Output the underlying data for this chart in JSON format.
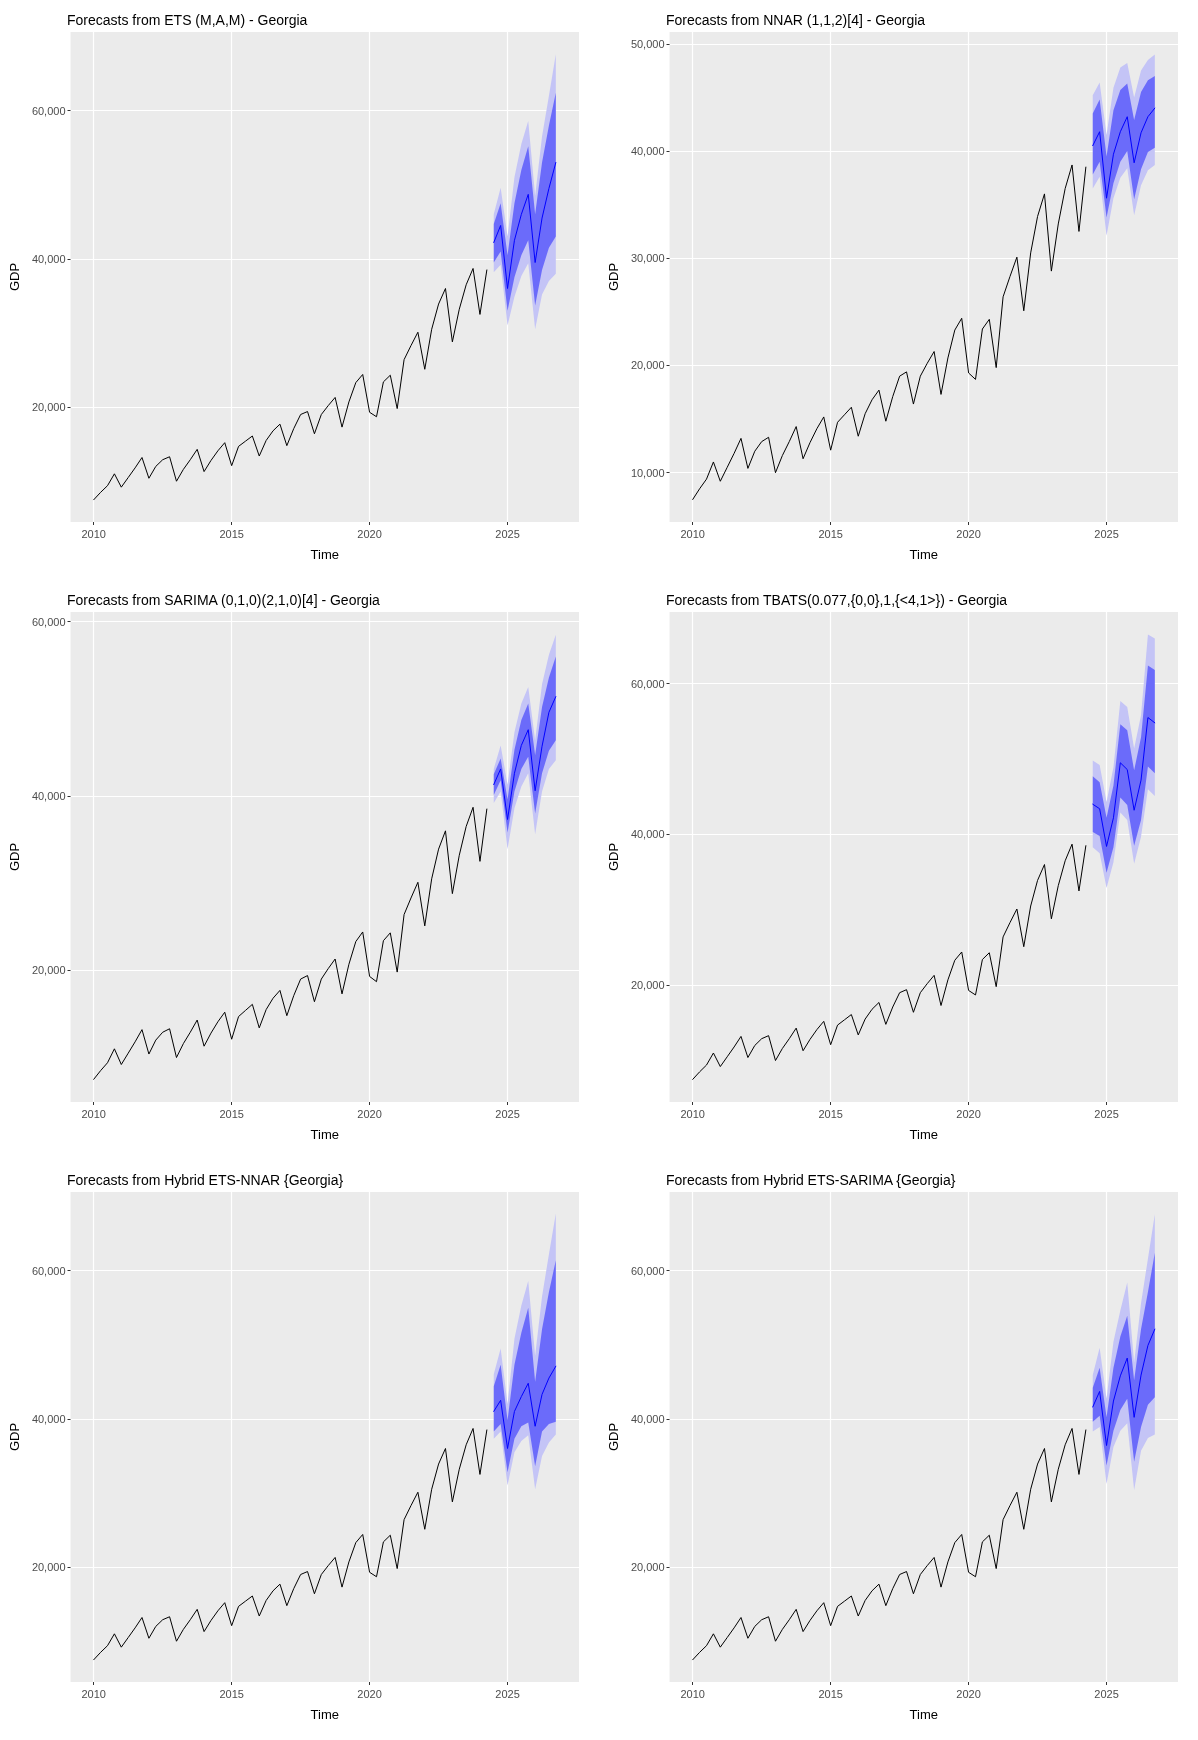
{
  "chart_data": [
    {
      "type": "line",
      "title": "Forecasts from ETS (M,A,M) - Georgia",
      "xlabel": "Time",
      "ylabel": "GDP",
      "xlim": [
        2009.16,
        2027.59
      ],
      "xticks": [
        2010,
        2015,
        2020,
        2025
      ],
      "ylim": [
        4500,
        70600
      ],
      "yticks": [
        {
          "value": 20000,
          "label": "20,000"
        },
        {
          "value": 40000,
          "label": "40,000"
        },
        {
          "value": 60000,
          "label": "60,000"
        }
      ],
      "grid": true,
      "marker": "none",
      "x": [
        2010,
        2010.25,
        2010.5,
        2010.75,
        2011,
        2011.25,
        2011.5,
        2011.75,
        2012,
        2012.25,
        2012.5,
        2012.75,
        2013,
        2013.25,
        2013.5,
        2013.75,
        2014,
        2014.25,
        2014.5,
        2014.75,
        2015,
        2015.25,
        2015.5,
        2015.75,
        2016,
        2016.25,
        2016.5,
        2016.75,
        2017,
        2017.25,
        2017.5,
        2017.75,
        2018,
        2018.25,
        2018.5,
        2018.75,
        2019,
        2019.25,
        2019.5,
        2019.75,
        2020,
        2020.25,
        2020.5,
        2020.75,
        2021,
        2021.25,
        2021.5,
        2021.75,
        2022,
        2022.25,
        2022.5,
        2022.75,
        2023,
        2023.25,
        2023.5,
        2023.75,
        2024,
        2024.25
      ],
      "series": [
        {
          "color": "#c4c4f6",
          "x": [
            2024.5,
            2024.75,
            2025,
            2025.25,
            2025.5,
            2025.75,
            2026,
            2026.25,
            2026.5,
            2026.75
          ],
          "values": [
            null,
            null,
            null,
            null,
            null,
            null,
            null,
            null,
            null,
            null
          ],
          "lower": [
            38200,
            39200,
            31000,
            34900,
            37700,
            39400,
            30500,
            35200,
            37000,
            38000
          ],
          "upper": [
            46000,
            49600,
            43000,
            51000,
            55500,
            58600,
            48500,
            56500,
            62000,
            67600
          ]
        },
        {
          "color": "#0000ff",
          "x": [
            2024.5,
            2024.75,
            2025,
            2025.25,
            2025.5,
            2025.75,
            2026,
            2026.25,
            2026.5,
            2026.75
          ],
          "values": [
            42200,
            44500,
            36000,
            42500,
            46000,
            48700,
            39500,
            45500,
            49500,
            53000
          ],
          "lower": [
            39500,
            41000,
            33000,
            37500,
            40500,
            42500,
            33700,
            38500,
            41500,
            43000
          ],
          "upper": [
            44700,
            47500,
            40500,
            47500,
            52000,
            55200,
            46000,
            53000,
            58000,
            62400
          ]
        },
        {
          "color": "#000000",
          "values": [
            7500,
            8500,
            9400,
            11000,
            9200,
            10500,
            11800,
            13200,
            10400,
            12000,
            12900,
            13300,
            10000,
            11600,
            12900,
            14300,
            11300,
            12800,
            14100,
            15200,
            12100,
            14700,
            15400,
            16100,
            13400,
            15500,
            16800,
            17700,
            14800,
            17100,
            19000,
            19400,
            16400,
            19000,
            20200,
            21300,
            17300,
            20700,
            23300,
            24400,
            19300,
            18700,
            23400,
            24300,
            19800,
            26400,
            28300,
            30100,
            25100,
            30500,
            33900,
            36000,
            28800,
            33200,
            36500,
            38700,
            32500,
            38500
          ]
        }
      ]
    },
    {
      "type": "line",
      "title": "Forecasts from NNAR (1,1,2)[4] - Georgia",
      "xlabel": "Time",
      "ylabel": "GDP",
      "xlim": [
        2009.16,
        2027.59
      ],
      "xticks": [
        2010,
        2015,
        2020,
        2025
      ],
      "ylim": [
        5400,
        51100
      ],
      "yticks": [
        {
          "value": 10000,
          "label": "10,000"
        },
        {
          "value": 20000,
          "label": "20,000"
        },
        {
          "value": 30000,
          "label": "30,000"
        },
        {
          "value": 40000,
          "label": "40,000"
        },
        {
          "value": 50000,
          "label": "50,000"
        }
      ],
      "grid": true,
      "marker": "none",
      "x": [
        2010,
        2010.25,
        2010.5,
        2010.75,
        2011,
        2011.25,
        2011.5,
        2011.75,
        2012,
        2012.25,
        2012.5,
        2012.75,
        2013,
        2013.25,
        2013.5,
        2013.75,
        2014,
        2014.25,
        2014.5,
        2014.75,
        2015,
        2015.25,
        2015.5,
        2015.75,
        2016,
        2016.25,
        2016.5,
        2016.75,
        2017,
        2017.25,
        2017.5,
        2017.75,
        2018,
        2018.25,
        2018.5,
        2018.75,
        2019,
        2019.25,
        2019.5,
        2019.75,
        2020,
        2020.25,
        2020.5,
        2020.75,
        2021,
        2021.25,
        2021.5,
        2021.75,
        2022,
        2022.25,
        2022.5,
        2022.75,
        2023,
        2023.25,
        2023.5,
        2023.75,
        2024,
        2024.25
      ],
      "series": [
        {
          "color": "#c4c4f6",
          "x": [
            2024.5,
            2024.75,
            2025,
            2025.25,
            2025.5,
            2025.75,
            2026,
            2026.25,
            2026.5,
            2026.75
          ],
          "values": [
            null,
            null,
            null,
            null,
            null,
            null,
            null,
            null,
            null,
            null
          ],
          "lower": [
            36500,
            37600,
            32100,
            35600,
            37500,
            38400,
            34000,
            36800,
            38200,
            38700
          ],
          "upper": [
            45200,
            46400,
            41500,
            45900,
            47800,
            48200,
            45000,
            47500,
            48500,
            49000
          ]
        },
        {
          "color": "#0000ff",
          "x": [
            2024.5,
            2024.75,
            2025,
            2025.25,
            2025.5,
            2025.75,
            2026,
            2026.25,
            2026.5,
            2026.75
          ],
          "values": [
            40500,
            41800,
            35600,
            39700,
            41800,
            43200,
            38900,
            41700,
            43200,
            44000
          ],
          "lower": [
            37800,
            39000,
            33800,
            37000,
            39000,
            40000,
            35500,
            38300,
            39900,
            40300
          ],
          "upper": [
            43500,
            44800,
            39500,
            43800,
            45700,
            46300,
            42900,
            45500,
            46600,
            47000
          ]
        },
        {
          "color": "#000000",
          "values": [
            7500,
            8500,
            9400,
            11000,
            9200,
            10500,
            11800,
            13200,
            10400,
            12000,
            12900,
            13300,
            10000,
            11600,
            12900,
            14300,
            11300,
            12800,
            14100,
            15200,
            12100,
            14700,
            15400,
            16100,
            13400,
            15500,
            16800,
            17700,
            14800,
            17100,
            19000,
            19400,
            16400,
            19000,
            20200,
            21300,
            17300,
            20700,
            23300,
            24400,
            19300,
            18700,
            23400,
            24300,
            19800,
            26400,
            28300,
            30100,
            25100,
            30500,
            33900,
            36000,
            28800,
            33200,
            36500,
            38700,
            32500,
            38500
          ]
        }
      ]
    },
    {
      "type": "line",
      "title": "Forecasts from SARIMA (0,1,0)(2,1,0)[4] - Georgia",
      "xlabel": "Time",
      "ylabel": "GDP",
      "xlim": [
        2009.16,
        2027.59
      ],
      "xticks": [
        2010,
        2015,
        2020,
        2025
      ],
      "ylim": [
        4900,
        61100
      ],
      "yticks": [
        {
          "value": 20000,
          "label": "20,000"
        },
        {
          "value": 40000,
          "label": "40,000"
        },
        {
          "value": 60000,
          "label": "60,000"
        }
      ],
      "grid": true,
      "marker": "none",
      "x": [
        2010,
        2010.25,
        2010.5,
        2010.75,
        2011,
        2011.25,
        2011.5,
        2011.75,
        2012,
        2012.25,
        2012.5,
        2012.75,
        2013,
        2013.25,
        2013.5,
        2013.75,
        2014,
        2014.25,
        2014.5,
        2014.75,
        2015,
        2015.25,
        2015.5,
        2015.75,
        2016,
        2016.25,
        2016.5,
        2016.75,
        2017,
        2017.25,
        2017.5,
        2017.75,
        2018,
        2018.25,
        2018.5,
        2018.75,
        2019,
        2019.25,
        2019.5,
        2019.75,
        2020,
        2020.25,
        2020.5,
        2020.75,
        2021,
        2021.25,
        2021.5,
        2021.75,
        2022,
        2022.25,
        2022.5,
        2022.75,
        2023,
        2023.25,
        2023.5,
        2023.75,
        2024,
        2024.25
      ],
      "series": [
        {
          "color": "#c4c4f6",
          "x": [
            2024.5,
            2024.75,
            2025,
            2025.25,
            2025.5,
            2025.75,
            2026,
            2026.25,
            2026.5,
            2026.75
          ],
          "values": [
            null,
            null,
            null,
            null,
            null,
            null,
            null,
            null,
            null,
            null
          ],
          "lower": [
            39200,
            40500,
            33900,
            38600,
            41100,
            42600,
            35600,
            40500,
            43100,
            44100
          ],
          "upper": [
            43100,
            45800,
            41300,
            47300,
            50600,
            52500,
            46400,
            52800,
            56200,
            58500
          ]
        },
        {
          "color": "#0000ff",
          "x": [
            2024.5,
            2024.75,
            2025,
            2025.25,
            2025.5,
            2025.75,
            2026,
            2026.25,
            2026.5,
            2026.75
          ],
          "values": [
            41300,
            43100,
            37300,
            42600,
            45800,
            47600,
            40600,
            45700,
            49600,
            51400
          ],
          "lower": [
            40100,
            41800,
            35800,
            40500,
            43100,
            44500,
            38000,
            42600,
            45200,
            46400
          ],
          "upper": [
            42500,
            44300,
            39600,
            45300,
            48700,
            50600,
            44700,
            50200,
            53600,
            56000
          ]
        },
        {
          "color": "#000000",
          "values": [
            7500,
            8500,
            9400,
            11000,
            9200,
            10500,
            11800,
            13200,
            10400,
            12000,
            12900,
            13300,
            10000,
            11600,
            12900,
            14300,
            11300,
            12800,
            14100,
            15200,
            12100,
            14700,
            15400,
            16100,
            13400,
            15500,
            16800,
            17700,
            14800,
            17100,
            19000,
            19400,
            16400,
            19000,
            20200,
            21300,
            17300,
            20700,
            23300,
            24400,
            19300,
            18700,
            23400,
            24300,
            19800,
            26400,
            28300,
            30100,
            25100,
            30500,
            33900,
            36000,
            28800,
            33200,
            36500,
            38700,
            32500,
            38500
          ]
        }
      ]
    },
    {
      "type": "line",
      "title": "Forecasts from TBATS(0.077,{0,0},1,{<4,1>}) - Georgia",
      "xlabel": "Time",
      "ylabel": "GDP",
      "xlim": [
        2009.16,
        2027.59
      ],
      "xticks": [
        2010,
        2015,
        2020,
        2025
      ],
      "ylim": [
        4500,
        69500
      ],
      "yticks": [
        {
          "value": 20000,
          "label": "20,000"
        },
        {
          "value": 40000,
          "label": "40,000"
        },
        {
          "value": 60000,
          "label": "60,000"
        }
      ],
      "grid": true,
      "marker": "none",
      "x": [
        2010,
        2010.25,
        2010.5,
        2010.75,
        2011,
        2011.25,
        2011.5,
        2011.75,
        2012,
        2012.25,
        2012.5,
        2012.75,
        2013,
        2013.25,
        2013.5,
        2013.75,
        2014,
        2014.25,
        2014.5,
        2014.75,
        2015,
        2015.25,
        2015.5,
        2015.75,
        2016,
        2016.25,
        2016.5,
        2016.75,
        2017,
        2017.25,
        2017.5,
        2017.75,
        2018,
        2018.25,
        2018.5,
        2018.75,
        2019,
        2019.25,
        2019.5,
        2019.75,
        2020,
        2020.25,
        2020.5,
        2020.75,
        2021,
        2021.25,
        2021.5,
        2021.75,
        2022,
        2022.25,
        2022.5,
        2022.75,
        2023,
        2023.25,
        2023.5,
        2023.75,
        2024,
        2024.25
      ],
      "series": [
        {
          "color": "#c4c4f6",
          "x": [
            2024.5,
            2024.75,
            2025,
            2025.25,
            2025.5,
            2025.75,
            2026,
            2026.25,
            2026.5,
            2026.75
          ],
          "values": [
            null,
            null,
            null,
            null,
            null,
            null,
            null,
            null,
            null,
            null
          ],
          "lower": [
            38300,
            37500,
            32900,
            36300,
            42900,
            41900,
            36100,
            39700,
            46000,
            45100
          ],
          "upper": [
            49800,
            49200,
            44300,
            48900,
            57700,
            56900,
            51400,
            55800,
            66500,
            66000
          ]
        },
        {
          "color": "#0000ff",
          "x": [
            2024.5,
            2024.75,
            2025,
            2025.25,
            2025.5,
            2025.75,
            2026,
            2026.25,
            2026.5,
            2026.75
          ],
          "values": [
            44000,
            43400,
            38400,
            42200,
            49500,
            48600,
            43200,
            47200,
            55500,
            54800
          ],
          "lower": [
            40300,
            39800,
            34900,
            38300,
            44900,
            43900,
            38500,
            41900,
            49000,
            48100
          ],
          "upper": [
            47700,
            46900,
            42200,
            46500,
            54600,
            53800,
            48500,
            52900,
            62400,
            61800
          ]
        },
        {
          "color": "#000000",
          "values": [
            7500,
            8500,
            9400,
            11000,
            9200,
            10500,
            11800,
            13200,
            10400,
            12000,
            12900,
            13300,
            10000,
            11600,
            12900,
            14300,
            11300,
            12800,
            14100,
            15200,
            12100,
            14700,
            15400,
            16100,
            13400,
            15500,
            16800,
            17700,
            14800,
            17100,
            19000,
            19400,
            16400,
            19000,
            20200,
            21300,
            17300,
            20700,
            23300,
            24400,
            19300,
            18700,
            23400,
            24300,
            19800,
            26400,
            28300,
            30100,
            25100,
            30500,
            33900,
            36000,
            28800,
            33200,
            36500,
            38700,
            32500,
            38500
          ]
        }
      ]
    },
    {
      "type": "line",
      "title": "Forecasts from Hybrid ETS-NNAR {Georgia}",
      "xlabel": "Time",
      "ylabel": "GDP",
      "xlim": [
        2009.16,
        2027.59
      ],
      "xticks": [
        2010,
        2015,
        2020,
        2025
      ],
      "ylim": [
        4500,
        70600
      ],
      "yticks": [
        {
          "value": 20000,
          "label": "20,000"
        },
        {
          "value": 40000,
          "label": "40,000"
        },
        {
          "value": 60000,
          "label": "60,000"
        }
      ],
      "grid": true,
      "marker": "none",
      "x": [
        2010,
        2010.25,
        2010.5,
        2010.75,
        2011,
        2011.25,
        2011.5,
        2011.75,
        2012,
        2012.25,
        2012.5,
        2012.75,
        2013,
        2013.25,
        2013.5,
        2013.75,
        2014,
        2014.25,
        2014.5,
        2014.75,
        2015,
        2015.25,
        2015.5,
        2015.75,
        2016,
        2016.25,
        2016.5,
        2016.75,
        2017,
        2017.25,
        2017.5,
        2017.75,
        2018,
        2018.25,
        2018.5,
        2018.75,
        2019,
        2019.25,
        2019.5,
        2019.75,
        2020,
        2020.25,
        2020.5,
        2020.75,
        2021,
        2021.25,
        2021.5,
        2021.75,
        2022,
        2022.25,
        2022.5,
        2022.75,
        2023,
        2023.25,
        2023.5,
        2023.75,
        2024,
        2024.25
      ],
      "series": [
        {
          "color": "#c4c4f6",
          "x": [
            2024.5,
            2024.75,
            2025,
            2025.25,
            2025.5,
            2025.75,
            2026,
            2026.25,
            2026.5,
            2026.75
          ],
          "values": [
            null,
            null,
            null,
            null,
            null,
            null,
            null,
            null,
            null,
            null
          ],
          "lower": [
            37300,
            38300,
            31000,
            35500,
            37000,
            37800,
            30500,
            35000,
            36800,
            37900
          ],
          "upper": [
            46000,
            49500,
            42000,
            50800,
            55300,
            58600,
            48500,
            56500,
            62200,
            67700
          ]
        },
        {
          "color": "#0000ff",
          "x": [
            2024.5,
            2024.75,
            2025,
            2025.25,
            2025.5,
            2025.75,
            2026,
            2026.25,
            2026.5,
            2026.75
          ],
          "values": [
            41000,
            42500,
            36000,
            41000,
            43000,
            44800,
            39000,
            43300,
            45500,
            47100
          ],
          "lower": [
            38300,
            39300,
            32800,
            37300,
            39000,
            39500,
            33600,
            38300,
            39300,
            39600
          ],
          "upper": [
            44400,
            47300,
            39800,
            47300,
            51600,
            55000,
            45000,
            52100,
            57100,
            61400
          ]
        },
        {
          "color": "#000000",
          "values": [
            7500,
            8500,
            9400,
            11000,
            9200,
            10500,
            11800,
            13200,
            10400,
            12000,
            12900,
            13300,
            10000,
            11600,
            12900,
            14300,
            11300,
            12800,
            14100,
            15200,
            12100,
            14700,
            15400,
            16100,
            13400,
            15500,
            16800,
            17700,
            14800,
            17100,
            19000,
            19400,
            16400,
            19000,
            20200,
            21300,
            17300,
            20700,
            23300,
            24400,
            19300,
            18700,
            23400,
            24300,
            19800,
            26400,
            28300,
            30100,
            25100,
            30500,
            33900,
            36000,
            28800,
            33200,
            36500,
            38700,
            32500,
            38500
          ]
        }
      ]
    },
    {
      "type": "line",
      "title": "Forecasts from Hybrid ETS-SARIMA {Georgia}",
      "xlabel": "Time",
      "ylabel": "GDP",
      "xlim": [
        2009.16,
        2027.59
      ],
      "xticks": [
        2010,
        2015,
        2020,
        2025
      ],
      "ylim": [
        4500,
        70600
      ],
      "yticks": [
        {
          "value": 20000,
          "label": "20,000"
        },
        {
          "value": 40000,
          "label": "40,000"
        },
        {
          "value": 60000,
          "label": "60,000"
        }
      ],
      "grid": true,
      "marker": "none",
      "x": [
        2010,
        2010.25,
        2010.5,
        2010.75,
        2011,
        2011.25,
        2011.5,
        2011.75,
        2012,
        2012.25,
        2012.5,
        2012.75,
        2013,
        2013.25,
        2013.5,
        2013.75,
        2014,
        2014.25,
        2014.5,
        2014.75,
        2015,
        2015.25,
        2015.5,
        2015.75,
        2016,
        2016.25,
        2016.5,
        2016.75,
        2017,
        2017.25,
        2017.5,
        2017.75,
        2018,
        2018.25,
        2018.5,
        2018.75,
        2019,
        2019.25,
        2019.5,
        2019.75,
        2020,
        2020.25,
        2020.5,
        2020.75,
        2021,
        2021.25,
        2021.5,
        2021.75,
        2022,
        2022.25,
        2022.5,
        2022.75,
        2023,
        2023.25,
        2023.5,
        2023.75,
        2024,
        2024.25
      ],
      "series": [
        {
          "color": "#c4c4f6",
          "x": [
            2024.5,
            2024.75,
            2025,
            2025.25,
            2025.5,
            2025.75,
            2026,
            2026.25,
            2026.5,
            2026.75
          ],
          "values": [
            null,
            null,
            null,
            null,
            null,
            null,
            null,
            null,
            null,
            null
          ],
          "lower": [
            38300,
            38900,
            31200,
            36200,
            38400,
            39400,
            30400,
            35700,
            37400,
            37900
          ],
          "upper": [
            45900,
            49600,
            42700,
            50400,
            54600,
            58400,
            47600,
            55600,
            61600,
            67600
          ]
        },
        {
          "color": "#0000ff",
          "x": [
            2024.5,
            2024.75,
            2025,
            2025.25,
            2025.5,
            2025.75,
            2026,
            2026.25,
            2026.5,
            2026.75
          ],
          "values": [
            41600,
            43700,
            36400,
            42400,
            45800,
            48200,
            40200,
            45900,
            49900,
            52100
          ],
          "lower": [
            39600,
            40400,
            33700,
            38400,
            41200,
            42700,
            34200,
            38900,
            41900,
            42900
          ],
          "upper": [
            44200,
            46900,
            40200,
            46900,
            51100,
            53900,
            45200,
            52100,
            57100,
            62400
          ]
        },
        {
          "color": "#000000",
          "values": [
            7500,
            8500,
            9400,
            11000,
            9200,
            10500,
            11800,
            13200,
            10400,
            12000,
            12900,
            13300,
            10000,
            11600,
            12900,
            14300,
            11300,
            12800,
            14100,
            15200,
            12100,
            14700,
            15400,
            16100,
            13400,
            15500,
            16800,
            17700,
            14800,
            17100,
            19000,
            19400,
            16400,
            19000,
            20200,
            21300,
            17300,
            20700,
            23300,
            24400,
            19300,
            18700,
            23400,
            24300,
            19800,
            26400,
            28300,
            30100,
            25100,
            30500,
            33900,
            36000,
            28800,
            33200,
            36500,
            38700,
            32500,
            38500
          ]
        }
      ]
    }
  ]
}
